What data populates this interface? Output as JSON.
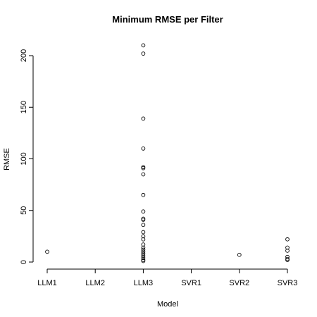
{
  "chart_data": {
    "type": "scatter",
    "title": "Minimum RMSE per Filter",
    "xlabel": "Model",
    "ylabel": "RMSE",
    "categories": [
      "LLM1",
      "LLM2",
      "LLM3",
      "SVR1",
      "SVR2",
      "SVR3"
    ],
    "yticks": [
      0,
      50,
      100,
      150,
      200
    ],
    "ylim": [
      0,
      210
    ],
    "grid": false,
    "legend": "none",
    "series": [
      {
        "points": [
          {
            "x": "LLM1",
            "y": 10
          },
          {
            "x": "LLM3",
            "y": 210
          },
          {
            "x": "LLM3",
            "y": 202
          },
          {
            "x": "LLM3",
            "y": 139
          },
          {
            "x": "LLM3",
            "y": 110
          },
          {
            "x": "LLM3",
            "y": 92
          },
          {
            "x": "LLM3",
            "y": 91
          },
          {
            "x": "LLM3",
            "y": 85
          },
          {
            "x": "LLM3",
            "y": 65
          },
          {
            "x": "LLM3",
            "y": 49
          },
          {
            "x": "LLM3",
            "y": 42
          },
          {
            "x": "LLM3",
            "y": 41
          },
          {
            "x": "LLM3",
            "y": 36
          },
          {
            "x": "LLM3",
            "y": 29
          },
          {
            "x": "LLM3",
            "y": 25
          },
          {
            "x": "LLM3",
            "y": 22
          },
          {
            "x": "LLM3",
            "y": 17
          },
          {
            "x": "LLM3",
            "y": 14
          },
          {
            "x": "LLM3",
            "y": 12
          },
          {
            "x": "LLM3",
            "y": 10
          },
          {
            "x": "LLM3",
            "y": 8
          },
          {
            "x": "LLM3",
            "y": 6
          },
          {
            "x": "LLM3",
            "y": 4
          },
          {
            "x": "LLM3",
            "y": 2
          },
          {
            "x": "LLM3",
            "y": 1
          },
          {
            "x": "SVR2",
            "y": 7
          },
          {
            "x": "SVR3",
            "y": 22
          },
          {
            "x": "SVR3",
            "y": 14
          },
          {
            "x": "SVR3",
            "y": 11
          },
          {
            "x": "SVR3",
            "y": 5
          },
          {
            "x": "SVR3",
            "y": 3
          },
          {
            "x": "SVR3",
            "y": 2
          }
        ]
      }
    ]
  }
}
